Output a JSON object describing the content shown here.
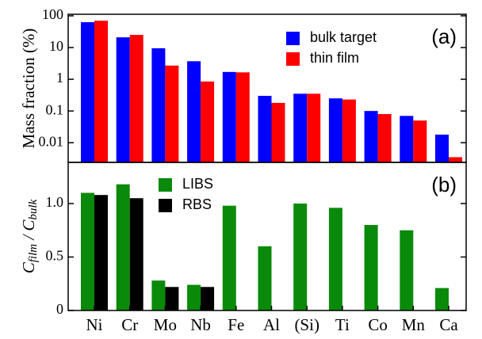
{
  "chart_data": [
    {
      "type": "bar",
      "panel_label": "(a)",
      "ylabel": "Mass fraction (%)",
      "log_scale": true,
      "ylim": [
        0.0024,
        112
      ],
      "yticks": [
        0.01,
        0.1,
        1,
        10,
        100
      ],
      "legend": "top-right",
      "series": [
        {
          "name": "bulk target",
          "color": "#0000ff",
          "values": [
            63,
            21,
            9.5,
            3.7,
            1.7,
            0.3,
            0.35,
            0.25,
            0.1,
            0.07,
            0.018
          ]
        },
        {
          "name": "thin film",
          "color": "#ff0000",
          "values": [
            70,
            25,
            2.7,
            0.85,
            1.65,
            0.18,
            0.35,
            0.23,
            0.08,
            0.05,
            0.0035
          ]
        }
      ]
    },
    {
      "type": "bar",
      "panel_label": "(b)",
      "ylabel_parts": [
        "C",
        "film",
        " / C",
        "bulk"
      ],
      "log_scale": false,
      "categories": [
        "Ni",
        "Cr",
        "Mo",
        "Nb",
        "Fe",
        "Al",
        "(Si)",
        "Ti",
        "Co",
        "Mn",
        "Ca"
      ],
      "ylim": [
        0,
        1.385
      ],
      "yticks": [
        0,
        {
          "value": 0.5,
          "label": "0.5"
        },
        {
          "value": 1,
          "label": "1.0"
        }
      ],
      "legend": "top-left",
      "series": [
        {
          "name": "LIBS",
          "color": "#0a8a0a",
          "values": [
            1.1,
            1.18,
            0.28,
            0.24,
            0.98,
            0.6,
            1.0,
            0.96,
            0.8,
            0.75,
            0.21
          ]
        },
        {
          "name": "RBS",
          "color": "#000000",
          "values": [
            1.08,
            1.05,
            0.22,
            0.22,
            null,
            null,
            null,
            null,
            null,
            null,
            null
          ]
        }
      ]
    }
  ]
}
